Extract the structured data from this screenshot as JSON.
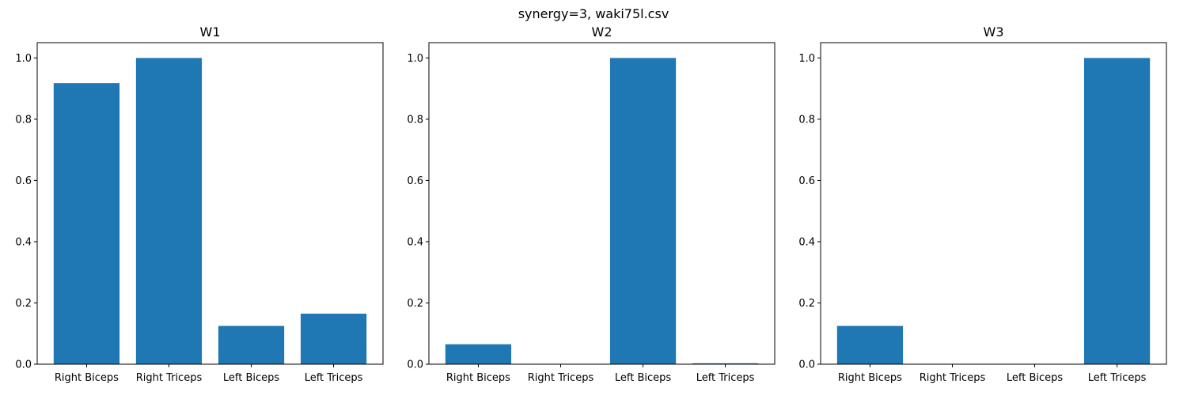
{
  "figure": {
    "suptitle": "synergy=3, waki75l.csv",
    "bar_color": "#1f77b4"
  },
  "chart_data": [
    {
      "type": "bar",
      "title": "W1",
      "xlabel": "",
      "ylabel": "",
      "categories": [
        "Right Biceps",
        "Right Triceps",
        "Left Biceps",
        "Left Triceps"
      ],
      "values": [
        0.918,
        1.0,
        0.125,
        0.165
      ],
      "ylim": [
        0,
        1.05
      ],
      "yticks": [
        "0.0",
        "0.2",
        "0.4",
        "0.6",
        "0.8",
        "1.0"
      ],
      "grid": false
    },
    {
      "type": "bar",
      "title": "W2",
      "xlabel": "",
      "ylabel": "",
      "categories": [
        "Right Biceps",
        "Right Triceps",
        "Left Biceps",
        "Left Triceps"
      ],
      "values": [
        0.065,
        0.0,
        1.0,
        0.003
      ],
      "ylim": [
        0,
        1.05
      ],
      "yticks": [
        "0.0",
        "0.2",
        "0.4",
        "0.6",
        "0.8",
        "1.0"
      ],
      "grid": false
    },
    {
      "type": "bar",
      "title": "W3",
      "xlabel": "",
      "ylabel": "",
      "categories": [
        "Right Biceps",
        "Right Triceps",
        "Left Biceps",
        "Left Triceps"
      ],
      "values": [
        0.125,
        0.0,
        0.0,
        1.0
      ],
      "ylim": [
        0,
        1.05
      ],
      "yticks": [
        "0.0",
        "0.2",
        "0.4",
        "0.6",
        "0.8",
        "1.0"
      ],
      "grid": false
    }
  ]
}
